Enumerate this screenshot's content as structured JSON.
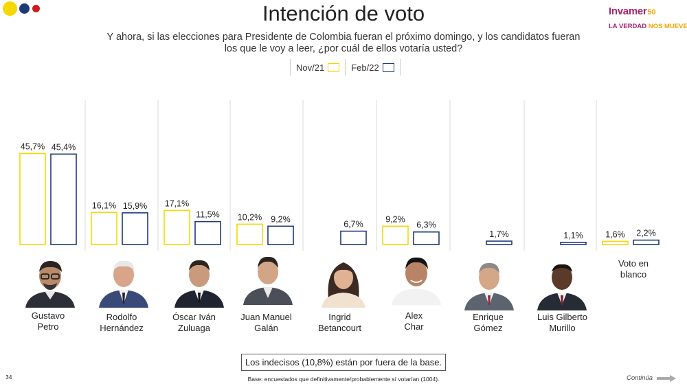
{
  "header": {
    "title": "Intención de voto",
    "subtitle": "Y ahora, si las elecciones para Presidente de Colombia fueran el próximo domingo, y los candidatos fueran los que le voy a leer, ¿por cuál de ellos votaría usted?"
  },
  "brand": {
    "name": "Invamer",
    "anniversary": "50",
    "tagline_a": "LA VERDAD",
    "tagline_b": "NOS MUEVE"
  },
  "legend": {
    "nov": "Nov/21",
    "feb": "Feb/22"
  },
  "colors": {
    "nov": "#f5d800",
    "feb": "#1f3a78",
    "divider": "#d8d8d8"
  },
  "chart_data": {
    "type": "bar",
    "title": "Intención de voto",
    "categories": [
      "Gustavo Petro",
      "Rodolfo Hernández",
      "Óscar Iván Zuluaga",
      "Juan Manuel Galán",
      "Ingrid Betancourt",
      "Alex Char",
      "Enrique Gómez",
      "Luis Gilberto Murillo",
      "Voto en blanco"
    ],
    "series": [
      {
        "name": "Nov/21",
        "values": [
          45.7,
          16.1,
          17.1,
          10.2,
          null,
          9.2,
          null,
          null,
          1.6
        ],
        "labels": [
          "45,7%",
          "16,1%",
          "17,1%",
          "10,2%",
          "",
          "9,2%",
          "",
          "",
          "1,6%"
        ]
      },
      {
        "name": "Feb/22",
        "values": [
          45.4,
          15.9,
          11.5,
          9.2,
          6.7,
          6.3,
          1.7,
          1.1,
          2.2
        ],
        "labels": [
          "45,4%",
          "15,9%",
          "11,5%",
          "9,2%",
          "6,7%",
          "6,3%",
          "1,7%",
          "1,1%",
          "2,2%"
        ]
      }
    ],
    "ylim": [
      0,
      50
    ],
    "grid": false,
    "legend_position": "top-center"
  },
  "candidates": [
    {
      "line1": "Gustavo",
      "line2": "Petro"
    },
    {
      "line1": "Rodolfo",
      "line2": "Hernández"
    },
    {
      "line1": "Óscar Iván",
      "line2": "Zuluaga"
    },
    {
      "line1": "Juan Manuel",
      "line2": "Galán"
    },
    {
      "line1": "Ingrid",
      "line2": "Betancourt"
    },
    {
      "line1": "Alex",
      "line2": "Char"
    },
    {
      "line1": "Enrique",
      "line2": "Gómez"
    },
    {
      "line1": "Luis Gilberto",
      "line2": "Murillo"
    },
    {
      "line1": "Voto en",
      "line2": "blanco"
    }
  ],
  "footer": {
    "note": "Los indecisos (10,8%) están por fuera de la base.",
    "base": "Base: encuestados que definitivamente/probablemente sí votarían (1004).",
    "page_number": "34",
    "continue_label": "Continúa"
  }
}
